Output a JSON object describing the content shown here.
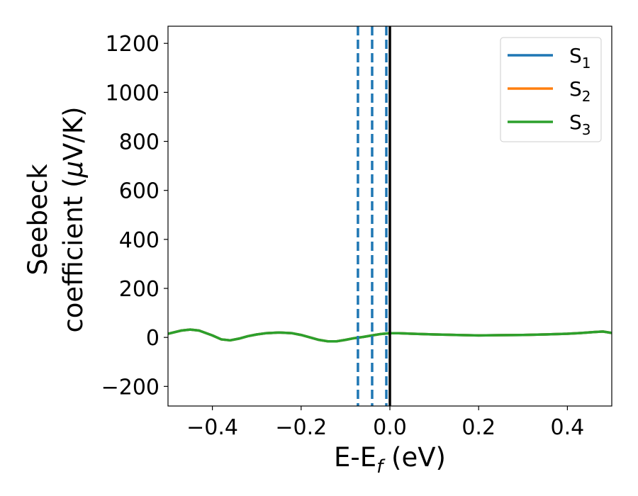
{
  "chart_data": {
    "type": "line",
    "xlabel": {
      "main": "E-E",
      "sub": "f",
      "tail": " (eV)"
    },
    "ylabel": {
      "line1": "Seebeck",
      "line2_pre": "coefficient  (",
      "mu": "μ",
      "line2_post": "V/K)"
    },
    "xlim": [
      -0.5,
      0.5
    ],
    "ylim": [
      -280,
      1270
    ],
    "xticks": [
      -0.4,
      -0.2,
      0.0,
      0.2,
      0.4
    ],
    "xtick_labels": [
      "−0.4",
      "−0.2",
      "0.0",
      "0.2",
      "0.4"
    ],
    "yticks": [
      -200,
      0,
      200,
      400,
      600,
      800,
      1000,
      1200
    ],
    "ytick_labels": [
      "−200",
      "0",
      "200",
      "400",
      "600",
      "800",
      "1000",
      "1200"
    ],
    "grid": false,
    "legend_position": "top-right",
    "series": [
      {
        "name": "S",
        "sub": "1",
        "color": "#1f77b4",
        "x": [
          -0.5,
          -0.47,
          -0.45,
          -0.43,
          -0.4,
          -0.38,
          -0.36,
          -0.34,
          -0.32,
          -0.3,
          -0.28,
          -0.25,
          -0.22,
          -0.2,
          -0.18,
          -0.16,
          -0.14,
          -0.12,
          -0.1,
          -0.08,
          -0.06,
          -0.04,
          -0.02,
          0.0,
          0.02,
          0.05,
          0.1,
          0.15,
          0.2,
          0.25,
          0.3,
          0.35,
          0.4,
          0.43,
          0.46,
          0.48,
          0.5
        ],
        "y": [
          15,
          28,
          32,
          28,
          8,
          -8,
          -12,
          -5,
          5,
          12,
          17,
          20,
          17,
          10,
          0,
          -10,
          -16,
          -16,
          -10,
          -3,
          2,
          8,
          14,
          17,
          17,
          15,
          12,
          10,
          8,
          9,
          10,
          12,
          15,
          18,
          22,
          24,
          18
        ]
      },
      {
        "name": "S",
        "sub": "2",
        "color": "#ff7f0e",
        "x": [
          -0.5,
          -0.47,
          -0.45,
          -0.43,
          -0.4,
          -0.38,
          -0.36,
          -0.34,
          -0.32,
          -0.3,
          -0.28,
          -0.25,
          -0.22,
          -0.2,
          -0.18,
          -0.16,
          -0.14,
          -0.12,
          -0.1,
          -0.08,
          -0.06,
          -0.04,
          -0.02,
          0.0,
          0.02,
          0.05,
          0.1,
          0.15,
          0.2,
          0.25,
          0.3,
          0.35,
          0.4,
          0.43,
          0.46,
          0.48,
          0.5
        ],
        "y": [
          15,
          28,
          32,
          28,
          8,
          -8,
          -12,
          -5,
          5,
          12,
          17,
          20,
          17,
          10,
          0,
          -10,
          -16,
          -16,
          -10,
          -3,
          2,
          8,
          14,
          17,
          17,
          15,
          12,
          10,
          8,
          9,
          10,
          12,
          15,
          18,
          22,
          24,
          18
        ]
      },
      {
        "name": "S",
        "sub": "3",
        "color": "#2ca02c",
        "x": [
          -0.5,
          -0.47,
          -0.45,
          -0.43,
          -0.4,
          -0.38,
          -0.36,
          -0.34,
          -0.32,
          -0.3,
          -0.28,
          -0.25,
          -0.22,
          -0.2,
          -0.18,
          -0.16,
          -0.14,
          -0.12,
          -0.1,
          -0.08,
          -0.06,
          -0.04,
          -0.02,
          0.0,
          0.02,
          0.05,
          0.1,
          0.15,
          0.2,
          0.25,
          0.3,
          0.35,
          0.4,
          0.43,
          0.46,
          0.48,
          0.5
        ],
        "y": [
          15,
          28,
          32,
          28,
          8,
          -8,
          -12,
          -5,
          5,
          12,
          17,
          20,
          17,
          10,
          0,
          -10,
          -16,
          -16,
          -10,
          -3,
          2,
          8,
          14,
          17,
          17,
          15,
          12,
          10,
          8,
          9,
          10,
          12,
          15,
          18,
          22,
          24,
          18
        ]
      }
    ],
    "vlines": [
      {
        "x": -0.072,
        "style": "dashed",
        "color": "#1f77b4"
      },
      {
        "x": -0.04,
        "style": "dashed",
        "color": "#1f77b4"
      },
      {
        "x": -0.008,
        "style": "dashed",
        "color": "#1f77b4"
      },
      {
        "x": 0.0,
        "style": "solid",
        "color": "#000000"
      }
    ]
  }
}
